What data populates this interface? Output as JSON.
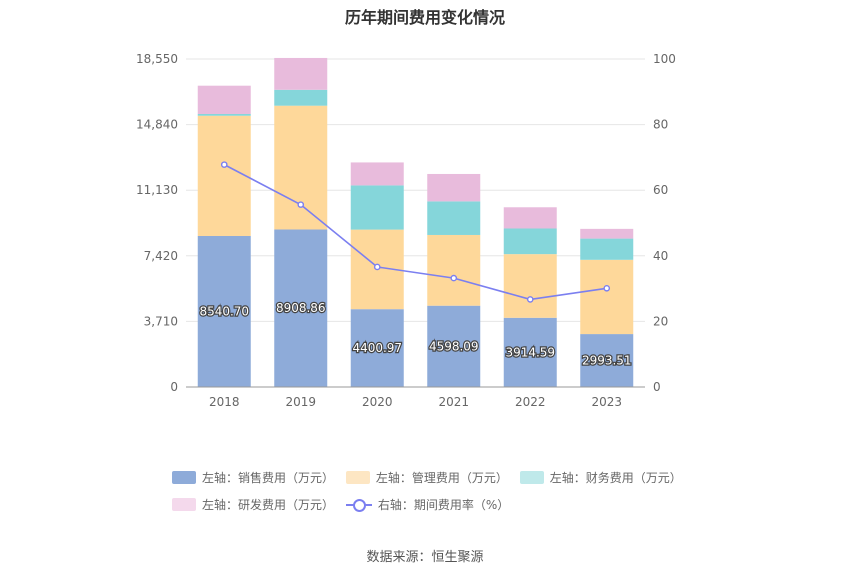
{
  "chart_data": {
    "type": "bar",
    "stacked": true,
    "title": "历年期间费用变化情况",
    "categories": [
      "2018",
      "2019",
      "2020",
      "2021",
      "2022",
      "2023"
    ],
    "left_axis": {
      "min": 0,
      "max": 18550,
      "ticks": [
        "0",
        "3,710",
        "7,420",
        "11,130",
        "14,840",
        "18,550"
      ],
      "tick_values": [
        0,
        3710,
        7420,
        11130,
        14840,
        18550
      ]
    },
    "right_axis": {
      "min": 0,
      "max": 100,
      "ticks": [
        "0",
        "20",
        "40",
        "60",
        "80",
        "100"
      ],
      "tick_values": [
        0,
        20,
        40,
        60,
        80,
        100
      ]
    },
    "series": [
      {
        "name": "左轴：销售费用（万元）",
        "color": "#8eabd9",
        "values": [
          8540.7,
          8908.86,
          4400.97,
          4598.09,
          3914.59,
          2993.51
        ],
        "labels": [
          "8540.70",
          "8908.86",
          "4400.97",
          "4598.09",
          "3914.59",
          "2993.51"
        ]
      },
      {
        "name": "左轴：管理费用（万元）",
        "color": "#fed89a",
        "legend_color": "#fde6c3",
        "values": [
          6800,
          7000,
          4500,
          4000,
          3600,
          4200
        ]
      },
      {
        "name": "左轴：财务费用（万元）",
        "color": "#85d6da",
        "legend_color": "#bfe9ea",
        "values": [
          100,
          900,
          2500,
          1900,
          1450,
          1200
        ]
      },
      {
        "name": "左轴：研发费用（万元）",
        "color": "#e8bbdc",
        "legend_color": "#f4d9ec",
        "values": [
          1600,
          1800,
          1300,
          1550,
          1200,
          550
        ]
      },
      {
        "name": "右轴：期间费用率（%）",
        "type": "line",
        "axis": "right",
        "color": "#7b7ff0",
        "values": [
          67.8,
          55.6,
          36.6,
          33.2,
          26.7,
          30.1
        ]
      }
    ],
    "grid": true,
    "legend": "bottom"
  },
  "source": "数据来源：恒生聚源"
}
